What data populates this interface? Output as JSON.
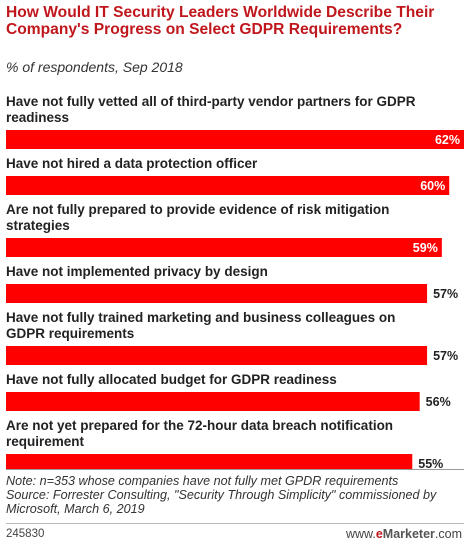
{
  "header": {
    "title": "How Would IT Security Leaders Worldwide Describe Their Company's Progress on Select GDPR Requirements?",
    "subtitle": "% of respondents, Sep 2018"
  },
  "footer": {
    "note": "Note: n=353 whose companies have not fully met GPDR requirements",
    "source": "Source: Forrester Consulting, \"Security Through Simplicity\" commissioned by Microsoft, March 6, 2019",
    "chart_id": "245830",
    "brand_prefix": "www.",
    "brand_e": "e",
    "brand_name": "Marketer",
    "brand_suffix": ".com"
  },
  "colors": {
    "bar": "#ff0000",
    "bar_text_inside": "#ffffff",
    "bar_text_outside": "#222222",
    "title": "#c0171d"
  },
  "chart_data": {
    "type": "bar",
    "orientation": "horizontal",
    "categories": [
      [
        "Have not fully vetted all of third-party vendor partners for GDPR",
        "readiness"
      ],
      [
        "Have not hired a data protection officer"
      ],
      [
        "Are not fully prepared to provide evidence of risk mitigation",
        "strategies"
      ],
      [
        "Have not implemented privacy by design"
      ],
      [
        "Have not fully trained marketing and business colleagues on",
        "GDPR requirements"
      ],
      [
        "Have not fully allocated budget for GDPR readiness"
      ],
      [
        "Are not yet prepared for the 72-hour data breach notification",
        "requirement"
      ]
    ],
    "values": [
      62,
      60,
      59,
      57,
      57,
      56,
      55
    ],
    "value_labels": [
      "62%",
      "60%",
      "59%",
      "57%",
      "57%",
      "56%",
      "55%"
    ],
    "xlim": [
      0,
      62
    ],
    "grid": false,
    "legend": "none"
  }
}
